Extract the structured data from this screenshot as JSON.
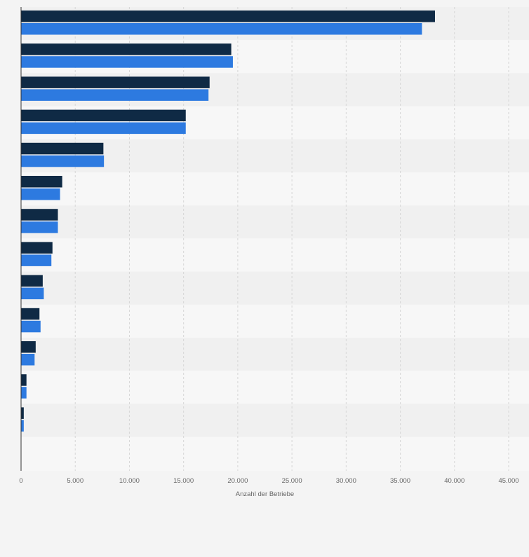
{
  "chart_data": {
    "type": "bar",
    "orientation": "horizontal",
    "categories": [
      "",
      "",
      "",
      "",
      "",
      "",
      "",
      "",
      "",
      "",
      "",
      "",
      ""
    ],
    "series": [
      {
        "color": "#0f2a45",
        "values": [
          38200,
          19400,
          17400,
          15200,
          7600,
          3800,
          3400,
          2900,
          2000,
          1700,
          1350,
          500,
          250
        ]
      },
      {
        "color": "#2d7ae0",
        "values": [
          37000,
          19550,
          17300,
          15200,
          7650,
          3600,
          3400,
          2800,
          2100,
          1800,
          1250,
          500,
          250
        ]
      }
    ],
    "xlabel": "Anzahl der Betriebe",
    "xlim": [
      0,
      45000
    ],
    "xticks": [
      0,
      5000,
      10000,
      15000,
      20000,
      25000,
      30000,
      35000,
      40000,
      45000
    ],
    "xtick_labels": [
      "0",
      "5.000",
      "10.000",
      "15.000",
      "20.000",
      "25.000",
      "30.000",
      "35.000",
      "40.000",
      "45.000"
    ],
    "grid": true,
    "legend": "none"
  }
}
